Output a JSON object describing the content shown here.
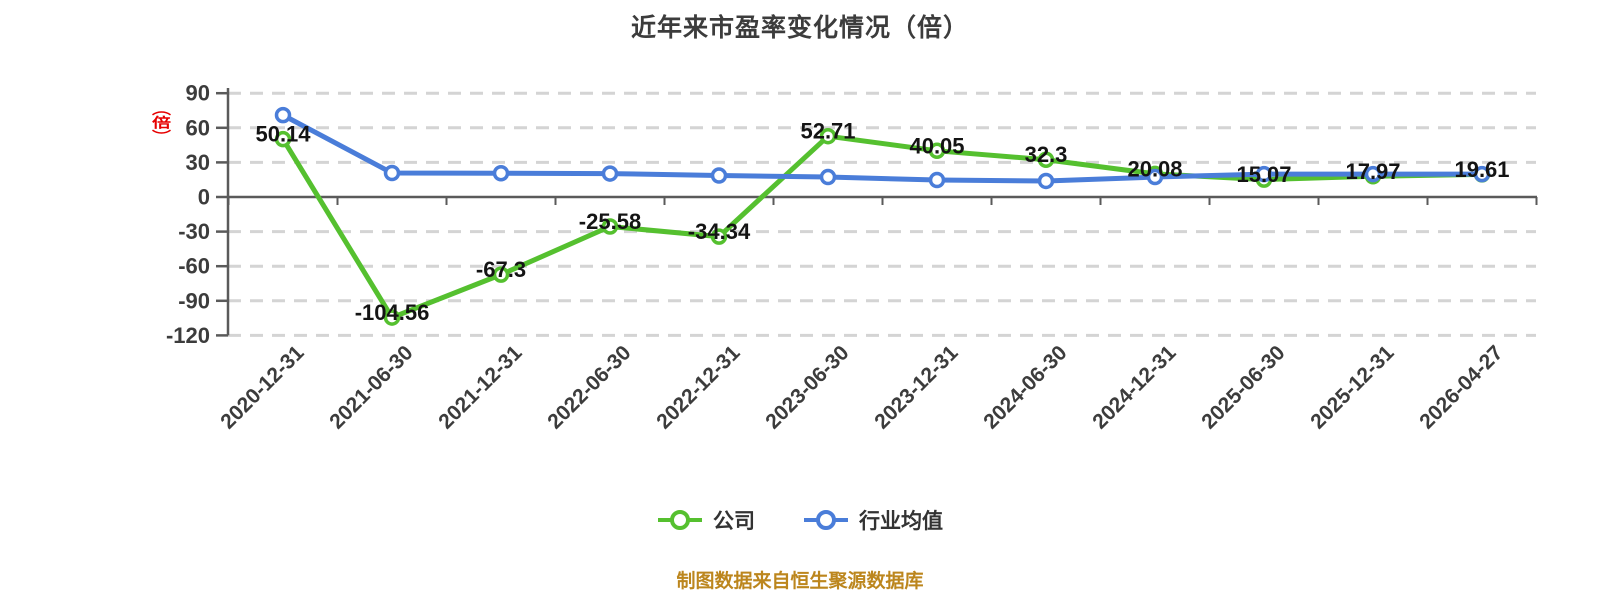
{
  "title": "近年来市盈率变化情况（倍）",
  "y_axis": {
    "unit_label": "（倍）",
    "unit_color": "#e60000",
    "ticks": [
      90,
      60,
      30,
      0,
      -30,
      -60,
      -90,
      -120
    ]
  },
  "legend": {
    "items": [
      {
        "label": "公司",
        "color": "#55c02f"
      },
      {
        "label": "行业均值",
        "color": "#4a7dd9"
      }
    ]
  },
  "footer": {
    "text": "制图数据来自恒生聚源数据库",
    "color": "#bc861d"
  },
  "chart_data": {
    "type": "line",
    "title": "近年来市盈率变化情况（倍）",
    "categories": [
      "2020-12-31",
      "2021-06-30",
      "2021-12-31",
      "2022-06-30",
      "2022-12-31",
      "2023-06-30",
      "2023-12-31",
      "2024-06-30",
      "2024-12-31",
      "2025-06-30",
      "2025-12-31",
      "2026-04-27"
    ],
    "series": [
      {
        "name": "公司",
        "color": "#55c02f",
        "values": [
          50.14,
          -104.56,
          -67.3,
          -25.58,
          -34.34,
          52.71,
          40.05,
          32.3,
          20.08,
          15.07,
          17.97,
          19.61
        ],
        "data_labels": true
      },
      {
        "name": "行业均值",
        "color": "#4a7dd9",
        "values": [
          71,
          20.8,
          20.6,
          20.3,
          18.6,
          17.3,
          14.7,
          13.9,
          17.3,
          19.8,
          19.8,
          19.8
        ],
        "data_labels": false,
        "values_estimated_from_plot": true
      }
    ],
    "ylim": [
      -120,
      90
    ],
    "y_tick_step": 30,
    "grid": "horizontal dashed",
    "legend_position": "bottom",
    "marker": "circle-white-fill"
  }
}
